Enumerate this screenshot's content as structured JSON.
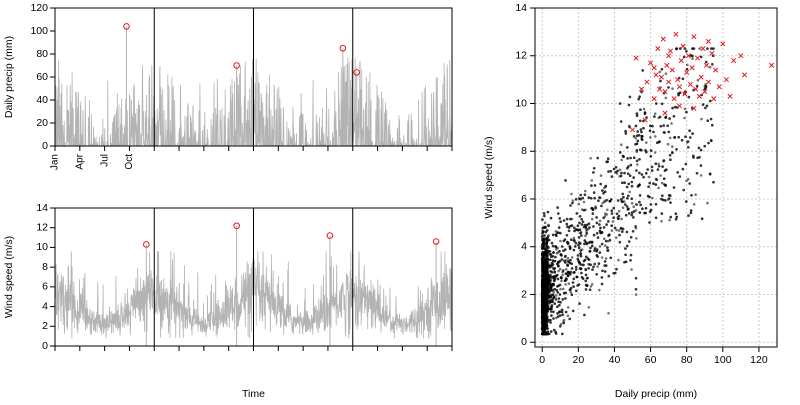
{
  "colors": {
    "series": "#b3b3b3",
    "highlight": "#e41a1c",
    "scatter": "#000000",
    "grid": "#cccccc",
    "axis": "#000000"
  },
  "chart_data": [
    {
      "type": "line",
      "title": "",
      "ylabel": "Daily precip (mm)",
      "xlabel": "",
      "ylim": [
        0,
        120
      ],
      "yticks": [
        0,
        20,
        40,
        60,
        80,
        100,
        120
      ],
      "x_tick_labels": [
        "Jan",
        "Apr",
        "Jul",
        "Oct"
      ],
      "x_range_years": [
        0,
        4
      ],
      "year_boundaries": [
        1,
        2,
        3
      ],
      "highlight_points": [
        {
          "t": 0.72,
          "value": 104
        },
        {
          "t": 1.83,
          "value": 70
        },
        {
          "t": 2.9,
          "value": 85
        },
        {
          "t": 3.04,
          "value": 64
        }
      ],
      "series_description": "daily precipitation, mostly 0-60 mm"
    },
    {
      "type": "line",
      "title": "",
      "ylabel": "Wind speed (m/s)",
      "xlabel": "Time",
      "ylim": [
        0,
        14
      ],
      "yticks": [
        0,
        2,
        4,
        6,
        8,
        10,
        12,
        14
      ],
      "x_range_years": [
        0,
        4
      ],
      "year_boundaries": [
        1,
        2,
        3
      ],
      "highlight_points": [
        {
          "t": 0.92,
          "value": 10.3
        },
        {
          "t": 1.83,
          "value": 12.2
        },
        {
          "t": 2.77,
          "value": 11.2
        },
        {
          "t": 3.84,
          "value": 10.6
        }
      ],
      "series_description": "daily wind speed, baseline ~2 m/s with winter peaks ~8-10 m/s"
    },
    {
      "type": "scatter",
      "title": "",
      "xlabel": "Daily precip (mm)",
      "ylabel": "Wind speed (m/s)",
      "xlim": [
        -4,
        130
      ],
      "ylim": [
        -0.2,
        14
      ],
      "xticks": [
        0,
        20,
        40,
        60,
        80,
        100,
        120
      ],
      "yticks": [
        0,
        2,
        4,
        6,
        8,
        10,
        12,
        14
      ],
      "grid": true,
      "extremes_marker": "x",
      "extremes": [
        [
          52,
          11.9
        ],
        [
          55,
          10.6
        ],
        [
          58,
          10.9
        ],
        [
          60,
          11.7
        ],
        [
          62,
          10.2
        ],
        [
          63,
          11.2
        ],
        [
          64,
          12.3
        ],
        [
          65,
          10.6
        ],
        [
          66,
          11.1
        ],
        [
          67,
          12.7
        ],
        [
          68,
          10.5
        ],
        [
          69,
          11.6
        ],
        [
          70,
          10.9
        ],
        [
          71,
          12.2
        ],
        [
          72,
          11.4
        ],
        [
          73,
          10.2
        ],
        [
          74,
          12.9
        ],
        [
          75,
          11.0
        ],
        [
          76,
          10.7
        ],
        [
          77,
          11.8
        ],
        [
          78,
          12.4
        ],
        [
          79,
          10.4
        ],
        [
          80,
          11.3
        ],
        [
          81,
          12.0
        ],
        [
          82,
          10.8
        ],
        [
          83,
          11.5
        ],
        [
          84,
          12.8
        ],
        [
          85,
          10.6
        ],
        [
          86,
          11.9
        ],
        [
          87,
          10.3
        ],
        [
          88,
          11.1
        ],
        [
          89,
          12.3
        ],
        [
          90,
          10.5
        ],
        [
          91,
          11.6
        ],
        [
          92,
          10.9
        ],
        [
          94,
          12.1
        ],
        [
          95,
          10.2
        ],
        [
          96,
          11.4
        ],
        [
          98,
          10.7
        ],
        [
          100,
          12.5
        ],
        [
          102,
          11.0
        ],
        [
          104,
          10.3
        ],
        [
          106,
          11.8
        ],
        [
          110,
          12.0
        ],
        [
          112,
          11.2
        ],
        [
          127,
          11.6
        ],
        [
          68,
          9.6
        ],
        [
          76,
          9.9
        ],
        [
          84,
          9.8
        ],
        [
          57,
          9.3
        ],
        [
          50,
          8.9
        ],
        [
          70,
          12.0
        ],
        [
          92,
          12.6
        ],
        [
          62,
          11.5
        ]
      ]
    }
  ]
}
